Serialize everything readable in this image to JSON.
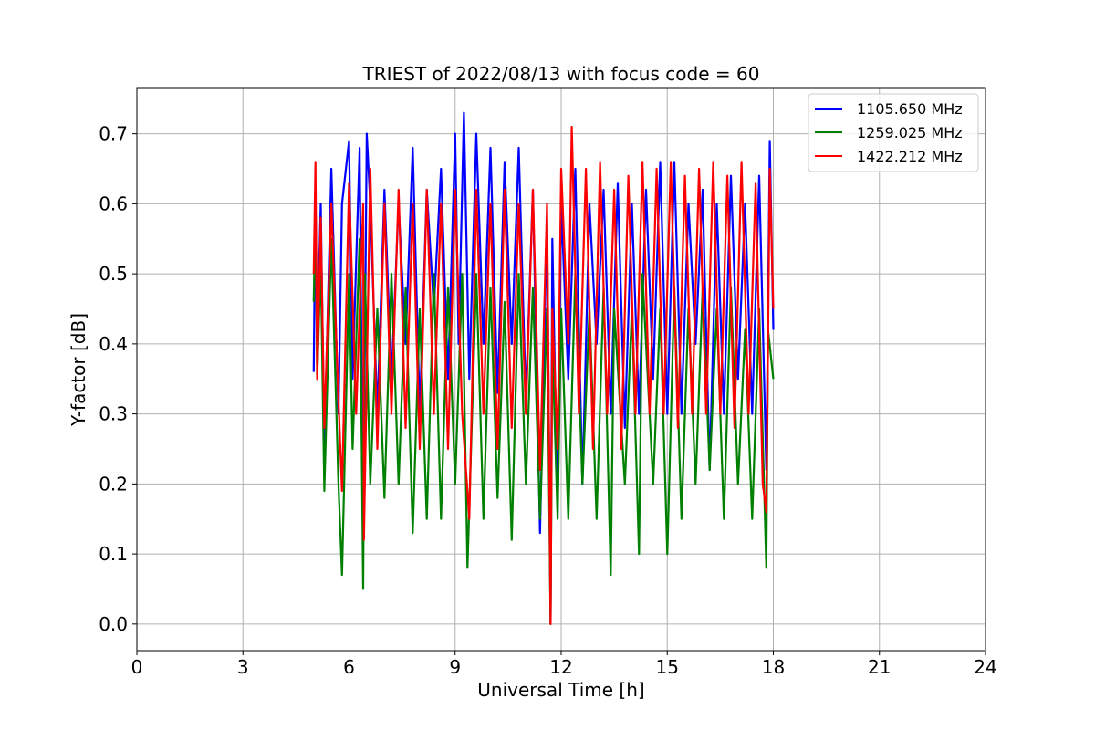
{
  "chart_data": {
    "type": "line",
    "title": "TRIEST of 2022/08/13 with focus code = 60",
    "xlabel": "Universal Time [h]",
    "ylabel": "Y-factor [dB]",
    "xlim": [
      0,
      24
    ],
    "ylim": [
      -0.038,
      0.766
    ],
    "xticks": [
      0,
      3,
      6,
      9,
      12,
      15,
      18,
      21,
      24
    ],
    "xtick_labels": [
      "0",
      "3",
      "6",
      "9",
      "12",
      "15",
      "18",
      "21",
      "24"
    ],
    "yticks": [
      0.0,
      0.1,
      0.2,
      0.3,
      0.4,
      0.5,
      0.6,
      0.7
    ],
    "ytick_labels": [
      "0.0",
      "0.1",
      "0.2",
      "0.3",
      "0.4",
      "0.5",
      "0.6",
      "0.7"
    ],
    "grid": true,
    "legend_position": "top-right",
    "series": [
      {
        "name": "1105.650 MHz",
        "color": "#0000ff",
        "x": [
          5.0,
          5.05,
          5.1,
          5.2,
          5.3,
          5.5,
          5.7,
          5.8,
          6.0,
          6.1,
          6.3,
          6.4,
          6.5,
          6.6,
          6.8,
          7.0,
          7.2,
          7.4,
          7.6,
          7.8,
          8.0,
          8.2,
          8.4,
          8.6,
          8.8,
          9.0,
          9.1,
          9.25,
          9.4,
          9.6,
          9.8,
          10.0,
          10.2,
          10.4,
          10.6,
          10.8,
          11.0,
          11.2,
          11.4,
          11.6,
          11.7,
          11.75,
          11.9,
          12.0,
          12.2,
          12.4,
          12.6,
          12.8,
          13.0,
          13.2,
          13.4,
          13.6,
          13.8,
          14.0,
          14.2,
          14.4,
          14.6,
          14.8,
          15.0,
          15.2,
          15.4,
          15.6,
          15.8,
          16.0,
          16.2,
          16.4,
          16.6,
          16.8,
          17.0,
          17.2,
          17.4,
          17.6,
          17.8,
          17.9,
          18.0
        ],
        "y": [
          0.36,
          0.62,
          0.4,
          0.6,
          0.25,
          0.65,
          0.3,
          0.6,
          0.69,
          0.35,
          0.68,
          0.12,
          0.7,
          0.6,
          0.3,
          0.62,
          0.35,
          0.6,
          0.4,
          0.68,
          0.3,
          0.62,
          0.45,
          0.65,
          0.35,
          0.7,
          0.4,
          0.73,
          0.35,
          0.7,
          0.4,
          0.68,
          0.33,
          0.66,
          0.4,
          0.68,
          0.32,
          0.62,
          0.13,
          0.58,
          0.0,
          0.55,
          0.16,
          0.6,
          0.35,
          0.65,
          0.2,
          0.6,
          0.4,
          0.62,
          0.3,
          0.63,
          0.28,
          0.6,
          0.3,
          0.62,
          0.35,
          0.66,
          0.3,
          0.66,
          0.3,
          0.6,
          0.4,
          0.62,
          0.22,
          0.6,
          0.3,
          0.64,
          0.35,
          0.6,
          0.3,
          0.64,
          0.22,
          0.69,
          0.42
        ]
      },
      {
        "name": "1259.025 MHz",
        "color": "#008000",
        "x": [
          5.0,
          5.05,
          5.1,
          5.2,
          5.3,
          5.5,
          5.7,
          5.8,
          6.0,
          6.1,
          6.3,
          6.4,
          6.45,
          6.6,
          6.8,
          7.0,
          7.2,
          7.4,
          7.6,
          7.8,
          8.0,
          8.2,
          8.4,
          8.6,
          8.8,
          9.0,
          9.2,
          9.35,
          9.6,
          9.8,
          10.0,
          10.2,
          10.4,
          10.6,
          10.8,
          11.0,
          11.2,
          11.4,
          11.6,
          11.7,
          11.75,
          11.9,
          12.0,
          12.2,
          12.4,
          12.6,
          12.8,
          13.0,
          13.2,
          13.4,
          13.5,
          13.8,
          14.0,
          14.2,
          14.3,
          14.6,
          14.8,
          15.0,
          15.2,
          15.4,
          15.6,
          15.8,
          16.0,
          16.2,
          16.4,
          16.6,
          16.8,
          17.0,
          17.2,
          17.4,
          17.6,
          17.8,
          17.85,
          18.0
        ],
        "y": [
          0.46,
          0.6,
          0.35,
          0.52,
          0.19,
          0.55,
          0.2,
          0.07,
          0.5,
          0.25,
          0.55,
          0.05,
          0.5,
          0.2,
          0.45,
          0.18,
          0.5,
          0.2,
          0.48,
          0.13,
          0.45,
          0.15,
          0.5,
          0.15,
          0.48,
          0.2,
          0.5,
          0.08,
          0.5,
          0.15,
          0.48,
          0.18,
          0.46,
          0.12,
          0.5,
          0.2,
          0.48,
          0.15,
          0.45,
          0.0,
          0.4,
          0.15,
          0.45,
          0.15,
          0.5,
          0.2,
          0.45,
          0.15,
          0.48,
          0.07,
          0.45,
          0.2,
          0.45,
          0.1,
          0.5,
          0.2,
          0.45,
          0.1,
          0.48,
          0.15,
          0.45,
          0.2,
          0.48,
          0.22,
          0.45,
          0.15,
          0.48,
          0.2,
          0.42,
          0.15,
          0.45,
          0.08,
          0.42,
          0.35
        ]
      },
      {
        "name": "1422.212 MHz",
        "color": "#ff0000",
        "x": [
          5.0,
          5.05,
          5.1,
          5.2,
          5.3,
          5.5,
          5.7,
          5.8,
          6.0,
          6.2,
          6.4,
          6.42,
          6.6,
          6.8,
          7.0,
          7.2,
          7.4,
          7.6,
          7.8,
          8.0,
          8.2,
          8.4,
          8.6,
          8.8,
          9.0,
          9.2,
          9.4,
          9.6,
          9.8,
          10.0,
          10.2,
          10.4,
          10.6,
          10.8,
          11.0,
          11.2,
          11.4,
          11.6,
          11.7,
          11.75,
          11.9,
          12.0,
          12.2,
          12.3,
          12.5,
          12.7,
          12.9,
          13.1,
          13.3,
          13.5,
          13.7,
          13.9,
          14.1,
          14.3,
          14.5,
          14.7,
          14.9,
          15.1,
          15.3,
          15.5,
          15.7,
          15.9,
          16.1,
          16.3,
          16.5,
          16.7,
          16.9,
          17.1,
          17.3,
          17.5,
          17.7,
          17.8,
          17.9,
          18.0
        ],
        "y": [
          0.5,
          0.66,
          0.35,
          0.58,
          0.28,
          0.6,
          0.32,
          0.19,
          0.63,
          0.3,
          0.6,
          0.12,
          0.65,
          0.25,
          0.6,
          0.3,
          0.62,
          0.28,
          0.6,
          0.25,
          0.62,
          0.3,
          0.6,
          0.25,
          0.62,
          0.3,
          0.15,
          0.62,
          0.3,
          0.6,
          0.25,
          0.62,
          0.28,
          0.6,
          0.3,
          0.62,
          0.22,
          0.6,
          0.0,
          0.45,
          0.25,
          0.65,
          0.4,
          0.71,
          0.3,
          0.65,
          0.25,
          0.66,
          0.3,
          0.62,
          0.25,
          0.64,
          0.3,
          0.66,
          0.3,
          0.65,
          0.3,
          0.66,
          0.28,
          0.64,
          0.3,
          0.65,
          0.3,
          0.66,
          0.3,
          0.64,
          0.28,
          0.66,
          0.3,
          0.63,
          0.2,
          0.16,
          0.65,
          0.45
        ]
      }
    ]
  }
}
